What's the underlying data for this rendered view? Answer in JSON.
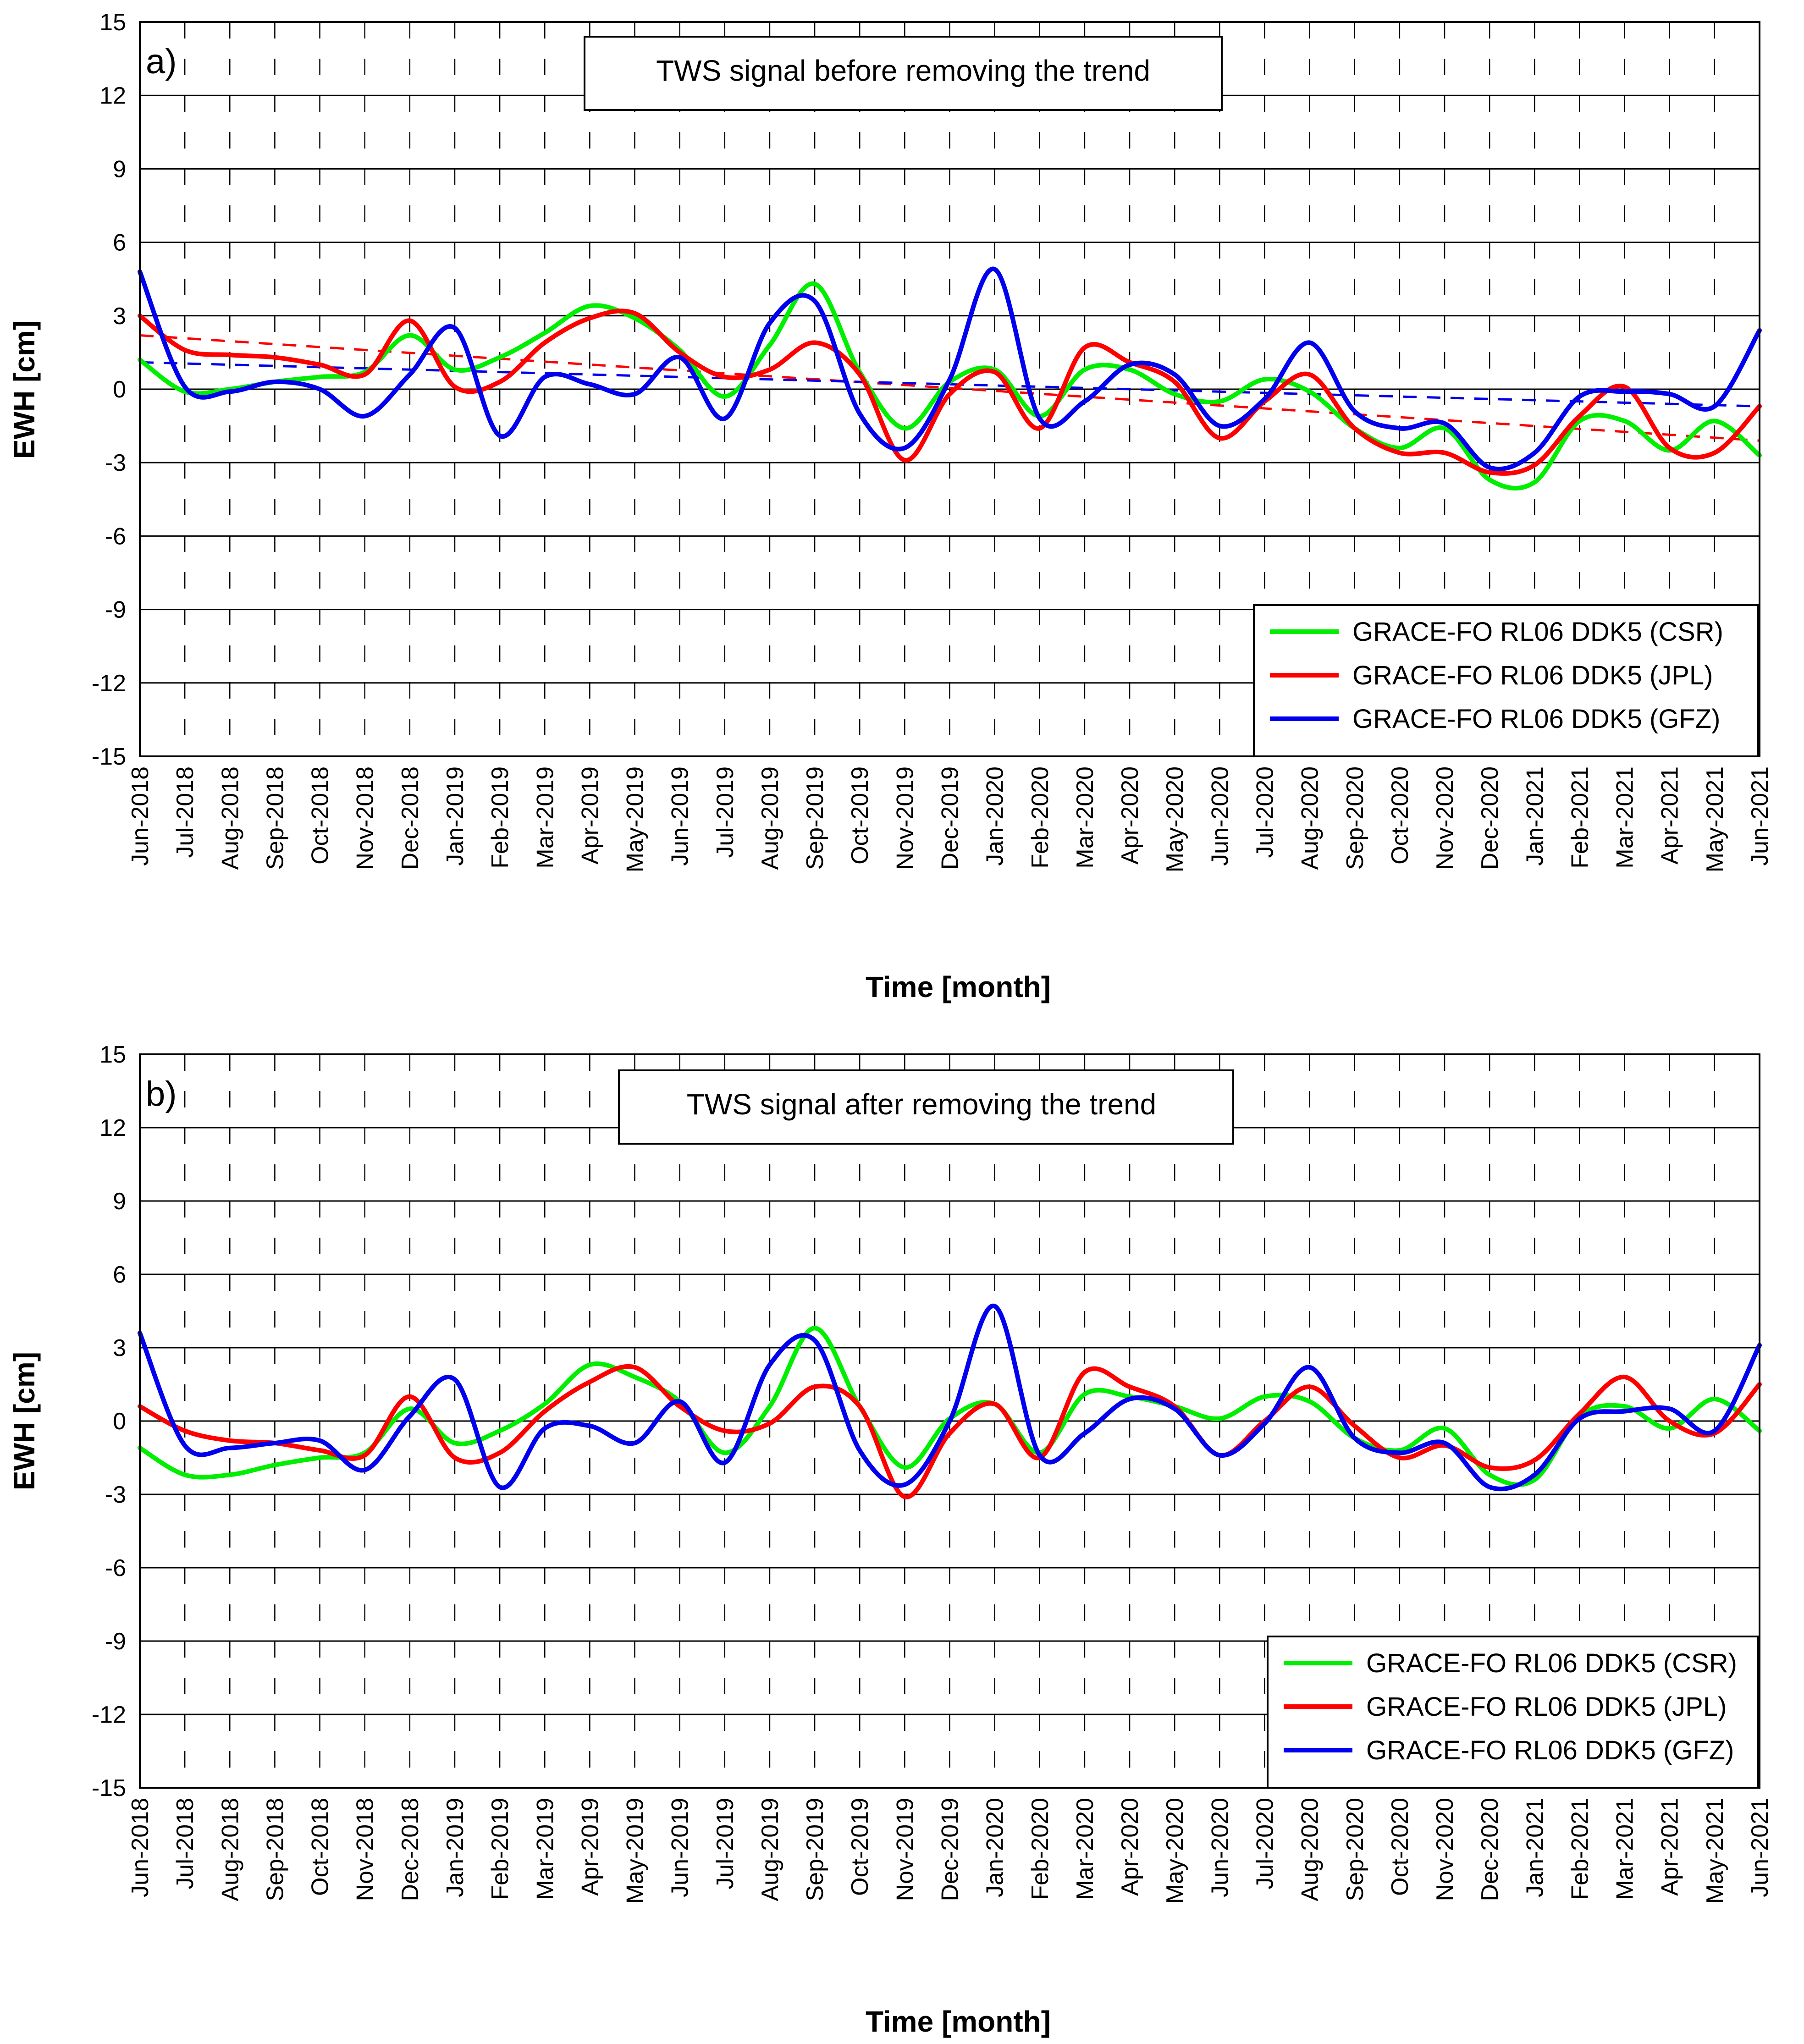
{
  "chart_data": [
    {
      "type": "line",
      "panel_label": "a)",
      "title": "TWS signal before removing the trend",
      "xlabel": "Time [month]",
      "ylabel": "EWH [cm]",
      "ylim": [
        -15,
        15
      ],
      "yticks": [
        "15",
        "12",
        "9",
        "6",
        "3",
        "0",
        "-3",
        "-6",
        "-9",
        "-12",
        "-15"
      ],
      "grid": "horizontal solid lines, vertical dashed lines",
      "legend_position": "bottom-right",
      "categories": [
        "Jun-2018",
        "Jul-2018",
        "Aug-2018",
        "Sep-2018",
        "Oct-2018",
        "Nov-2018",
        "Dec-2018",
        "Jan-2019",
        "Feb-2019",
        "Mar-2019",
        "Apr-2019",
        "May-2019",
        "Jun-2019",
        "Jul-2019",
        "Aug-2019",
        "Sep-2019",
        "Oct-2019",
        "Nov-2019",
        "Dec-2019",
        "Jan-2020",
        "Feb-2020",
        "Mar-2020",
        "Apr-2020",
        "May-2020",
        "Jun-2020",
        "Jul-2020",
        "Aug-2020",
        "Sep-2020",
        "Oct-2020",
        "Nov-2020",
        "Dec-2020",
        "Jan-2021",
        "Feb-2021",
        "Mar-2021",
        "Apr-2021",
        "May-2021",
        "Jun-2021"
      ],
      "series": [
        {
          "name": "GRACE-FO RL06 DDK5 (CSR)",
          "color": "#00ee00",
          "values": [
            1.2,
            -0.1,
            0.0,
            0.3,
            0.5,
            0.7,
            2.2,
            0.8,
            1.3,
            2.3,
            3.4,
            2.9,
            1.6,
            -0.3,
            1.8,
            4.3,
            0.7,
            -1.6,
            0.3,
            0.8,
            -1.1,
            0.8,
            0.8,
            -0.2,
            -0.5,
            0.4,
            -0.1,
            -1.6,
            -2.4,
            -1.6,
            -3.7,
            -3.8,
            -1.3,
            -1.3,
            -2.5,
            -1.3,
            -2.7
          ]
        },
        {
          "name": "GRACE-FO RL06 DDK5 (JPL)",
          "color": "#ff0000",
          "values": [
            3.0,
            1.6,
            1.4,
            1.3,
            1.0,
            0.6,
            2.8,
            0.1,
            0.3,
            1.9,
            2.9,
            3.1,
            1.5,
            0.5,
            0.8,
            1.9,
            0.6,
            -2.9,
            -0.2,
            0.7,
            -1.6,
            1.7,
            1.1,
            0.3,
            -2.0,
            -0.5,
            0.6,
            -1.6,
            -2.6,
            -2.6,
            -3.4,
            -3.1,
            -1.1,
            0.1,
            -2.4,
            -2.6,
            -0.7
          ]
        },
        {
          "name": "GRACE-FO RL06 DDK5 (GFZ)",
          "color": "#0000ee",
          "values": [
            4.8,
            0.1,
            -0.1,
            0.3,
            0.0,
            -1.1,
            0.6,
            2.5,
            -1.9,
            0.5,
            0.2,
            -0.2,
            1.3,
            -1.2,
            2.7,
            3.6,
            -1.0,
            -2.4,
            0.4,
            4.9,
            -1.2,
            -0.5,
            1.0,
            0.6,
            -1.5,
            -0.4,
            1.9,
            -0.9,
            -1.6,
            -1.4,
            -3.2,
            -2.6,
            -0.3,
            -0.1,
            -0.2,
            -0.7,
            2.4
          ]
        }
      ],
      "trend_lines": [
        {
          "color": "#ff0000",
          "start": 2.2,
          "end": -2.1
        },
        {
          "color": "#0000ee",
          "start": 1.1,
          "end": -0.7
        }
      ]
    },
    {
      "type": "line",
      "panel_label": "b)",
      "title": "TWS signal after removing the trend",
      "xlabel": "Time [month]",
      "ylabel": "EWH [cm]",
      "ylim": [
        -15,
        15
      ],
      "yticks": [
        "15",
        "12",
        "9",
        "6",
        "3",
        "0",
        "-3",
        "-6",
        "-9",
        "-12",
        "-15"
      ],
      "grid": "horizontal solid lines, vertical dashed lines",
      "legend_position": "bottom-right",
      "categories": [
        "Jun-2018",
        "Jul-2018",
        "Aug-2018",
        "Sep-2018",
        "Oct-2018",
        "Nov-2018",
        "Dec-2018",
        "Jan-2019",
        "Feb-2019",
        "Mar-2019",
        "Apr-2019",
        "May-2019",
        "Jun-2019",
        "Jul-2019",
        "Aug-2019",
        "Sep-2019",
        "Oct-2019",
        "Nov-2019",
        "Dec-2019",
        "Jan-2020",
        "Feb-2020",
        "Mar-2020",
        "Apr-2020",
        "May-2020",
        "Jun-2020",
        "Jul-2020",
        "Aug-2020",
        "Sep-2020",
        "Oct-2020",
        "Nov-2020",
        "Dec-2020",
        "Jan-2021",
        "Feb-2021",
        "Mar-2021",
        "Apr-2021",
        "May-2021",
        "Jun-2021"
      ],
      "series": [
        {
          "name": "GRACE-FO RL06 DDK5 (CSR)",
          "color": "#00ee00",
          "values": [
            -1.1,
            -2.2,
            -2.2,
            -1.8,
            -1.5,
            -1.3,
            0.5,
            -0.9,
            -0.4,
            0.7,
            2.3,
            1.8,
            0.8,
            -1.3,
            0.6,
            3.8,
            0.6,
            -1.9,
            0.1,
            0.7,
            -1.3,
            1.1,
            1.0,
            0.6,
            0.1,
            1.0,
            0.8,
            -0.7,
            -1.2,
            -0.3,
            -2.2,
            -2.4,
            0.2,
            0.6,
            -0.3,
            0.9,
            -0.4
          ]
        },
        {
          "name": "GRACE-FO RL06 DDK5 (JPL)",
          "color": "#ff0000",
          "values": [
            0.6,
            -0.4,
            -0.8,
            -0.9,
            -1.2,
            -1.4,
            1.0,
            -1.5,
            -1.3,
            0.4,
            1.6,
            2.2,
            0.6,
            -0.4,
            -0.1,
            1.4,
            0.6,
            -3.1,
            -0.5,
            0.7,
            -1.5,
            2.0,
            1.4,
            0.6,
            -1.4,
            0.0,
            1.4,
            -0.2,
            -1.5,
            -1.0,
            -1.9,
            -1.6,
            0.3,
            1.8,
            0.0,
            -0.5,
            1.5
          ]
        },
        {
          "name": "GRACE-FO RL06 DDK5 (GFZ)",
          "color": "#0000ee",
          "values": [
            3.6,
            -1.0,
            -1.1,
            -0.9,
            -0.8,
            -2.0,
            0.2,
            1.7,
            -2.7,
            -0.3,
            -0.2,
            -0.9,
            0.8,
            -1.7,
            2.3,
            3.3,
            -1.2,
            -2.6,
            0.0,
            4.7,
            -1.4,
            -0.5,
            0.9,
            0.5,
            -1.4,
            -0.1,
            2.2,
            -0.7,
            -1.3,
            -0.9,
            -2.7,
            -2.2,
            0.1,
            0.4,
            0.5,
            -0.4,
            3.1
          ]
        }
      ],
      "trend_lines": []
    }
  ]
}
